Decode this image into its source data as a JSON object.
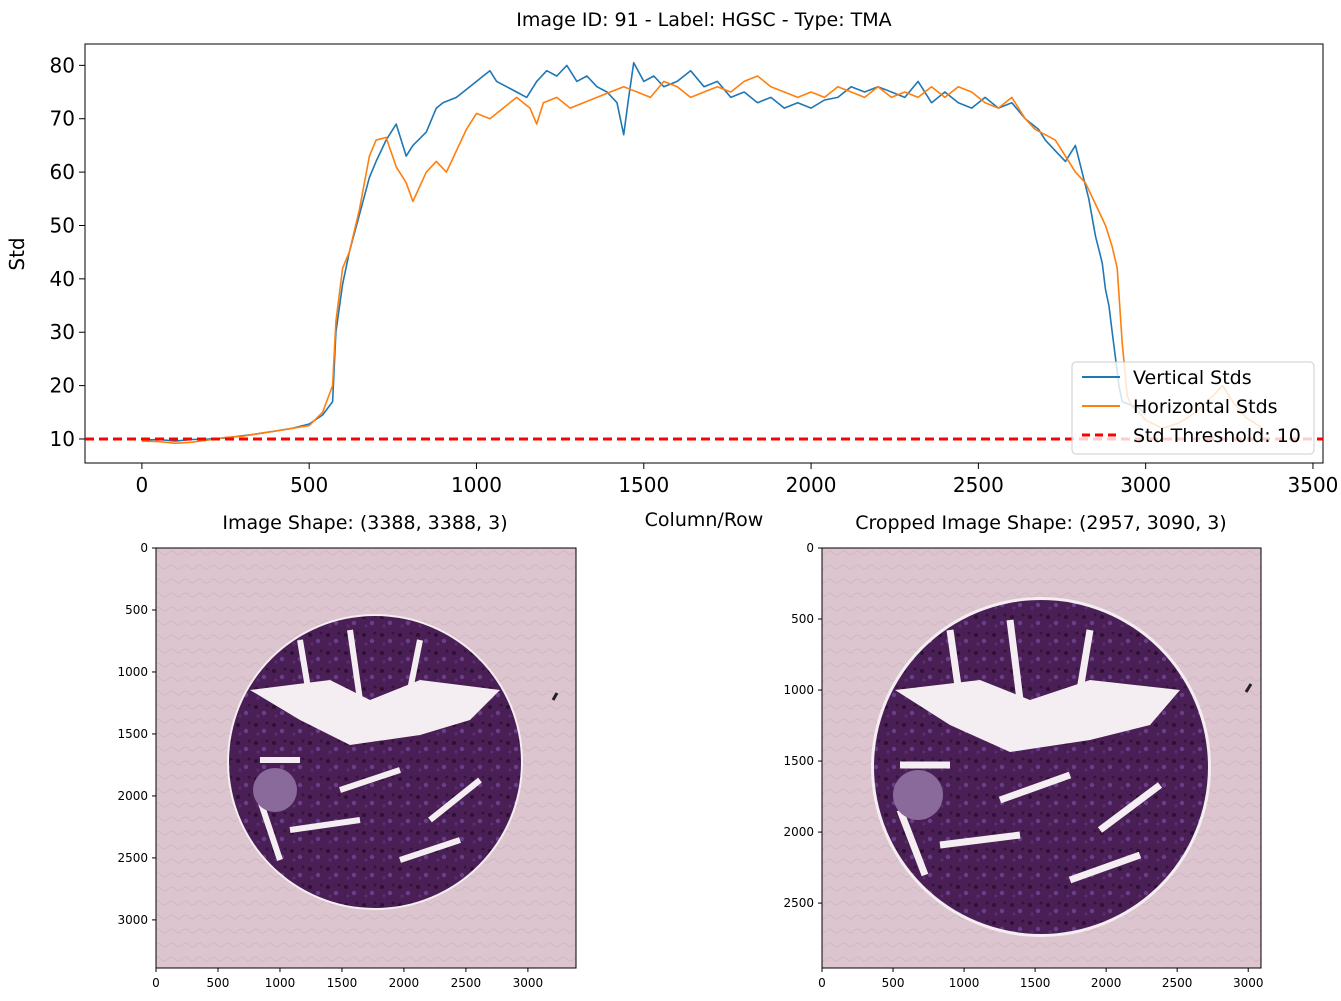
{
  "figure": {
    "suptitle": "Image ID: 91 - Label: HGSC - Type: TMA"
  },
  "chart_data": [
    {
      "type": "line",
      "title": "",
      "xlabel": "Column/Row",
      "ylabel": "Std",
      "xlim": [
        -170,
        3530
      ],
      "ylim": [
        5.5,
        84
      ],
      "xticks": [
        0,
        500,
        1000,
        1500,
        2000,
        2500,
        3000,
        3500
      ],
      "yticks": [
        10,
        20,
        30,
        40,
        50,
        60,
        70,
        80
      ],
      "grid": false,
      "legend_position": "lower right",
      "series": [
        {
          "name": "Vertical Stds",
          "color": "#1f77b4",
          "x": [
            0,
            50,
            100,
            150,
            200,
            250,
            300,
            350,
            400,
            450,
            500,
            540,
            570,
            580,
            600,
            620,
            650,
            680,
            700,
            730,
            760,
            790,
            810,
            850,
            880,
            900,
            940,
            980,
            1020,
            1040,
            1060,
            1090,
            1120,
            1150,
            1180,
            1210,
            1240,
            1270,
            1300,
            1330,
            1360,
            1390,
            1420,
            1440,
            1455,
            1470,
            1500,
            1530,
            1560,
            1600,
            1640,
            1680,
            1720,
            1760,
            1800,
            1840,
            1880,
            1920,
            1960,
            2000,
            2040,
            2080,
            2120,
            2160,
            2200,
            2240,
            2280,
            2320,
            2360,
            2400,
            2440,
            2480,
            2520,
            2560,
            2600,
            2640,
            2680,
            2700,
            2730,
            2760,
            2790,
            2810,
            2830,
            2850,
            2870,
            2880,
            2890,
            2900,
            2910,
            2920,
            2930,
            2950,
            2980,
            3000
          ],
          "values": [
            9.8,
            9.9,
            9.6,
            9.9,
            10.0,
            10.2,
            10.6,
            11.0,
            11.5,
            12.0,
            12.8,
            14.5,
            17.0,
            30.0,
            39.0,
            45.0,
            52.0,
            59.0,
            62.0,
            66.0,
            69.0,
            63.0,
            65.0,
            67.5,
            72.0,
            73.0,
            74.0,
            76.0,
            78.0,
            79.0,
            77.0,
            76.0,
            75.0,
            74.0,
            77.0,
            79.0,
            78.0,
            80.0,
            77.0,
            78.0,
            76.0,
            75.0,
            73.0,
            67.0,
            74.0,
            80.5,
            77.0,
            78.0,
            76.0,
            77.0,
            79.0,
            76.0,
            77.0,
            74.0,
            75.0,
            73.0,
            74.0,
            72.0,
            73.0,
            72.0,
            73.5,
            74.0,
            76.0,
            75.0,
            76.0,
            75.0,
            74.0,
            77.0,
            73.0,
            75.0,
            73.0,
            72.0,
            74.0,
            72.0,
            73.0,
            70.0,
            68.0,
            66.0,
            64.0,
            62.0,
            65.0,
            60.0,
            55.0,
            48.0,
            43.0,
            38.0,
            35.0,
            30.0,
            25.0,
            20.0,
            17.0,
            16.5,
            15.8,
            14.5
          ]
        },
        {
          "name": "Horizontal Stds",
          "color": "#ff7f0e",
          "x": [
            0,
            50,
            100,
            150,
            200,
            250,
            300,
            350,
            400,
            450,
            500,
            540,
            570,
            580,
            600,
            620,
            650,
            680,
            700,
            730,
            760,
            790,
            810,
            850,
            880,
            910,
            940,
            970,
            1000,
            1040,
            1080,
            1120,
            1160,
            1180,
            1200,
            1240,
            1280,
            1320,
            1360,
            1400,
            1440,
            1480,
            1520,
            1560,
            1600,
            1640,
            1680,
            1720,
            1760,
            1800,
            1840,
            1880,
            1920,
            1960,
            2000,
            2040,
            2080,
            2120,
            2160,
            2200,
            2240,
            2280,
            2320,
            2360,
            2400,
            2440,
            2480,
            2520,
            2560,
            2600,
            2640,
            2670,
            2700,
            2730,
            2760,
            2790,
            2820,
            2850,
            2880,
            2900,
            2915,
            2930,
            2945,
            2960,
            2980,
            3000,
            3050,
            3100,
            3150,
            3200,
            3230,
            3260,
            3300,
            3350
          ],
          "values": [
            9.6,
            9.5,
            9.2,
            9.4,
            9.8,
            10.3,
            10.5,
            11.0,
            11.5,
            12.0,
            12.5,
            15.0,
            20.0,
            32.0,
            42.0,
            45.0,
            53.0,
            63.0,
            66.0,
            66.5,
            61.0,
            58.0,
            54.5,
            60.0,
            62.0,
            60.0,
            64.0,
            68.0,
            71.0,
            70.0,
            72.0,
            74.0,
            72.0,
            69.0,
            73.0,
            74.0,
            72.0,
            73.0,
            74.0,
            75.0,
            76.0,
            75.0,
            74.0,
            77.0,
            76.0,
            74.0,
            75.0,
            76.0,
            75.0,
            77.0,
            78.0,
            76.0,
            75.0,
            74.0,
            75.0,
            74.0,
            76.0,
            75.0,
            74.0,
            76.0,
            74.0,
            75.0,
            74.0,
            76.0,
            74.0,
            76.0,
            75.0,
            73.0,
            72.0,
            74.0,
            70.0,
            68.0,
            67.0,
            66.0,
            63.0,
            60.0,
            58.0,
            54.0,
            50.0,
            46.0,
            42.0,
            28.0,
            18.0,
            16.0,
            15.0,
            13.5,
            12.0,
            13.0,
            15.0,
            18.0,
            20.0,
            17.0,
            14.0,
            12.0
          ]
        },
        {
          "name": "Std Threshold: 10",
          "color": "#ff0000",
          "style": "dashed",
          "x": [
            -170,
            3530
          ],
          "values": [
            10,
            10
          ]
        }
      ]
    },
    {
      "type": "image",
      "title": "Image Shape: (3388, 3388, 3)",
      "xlim": [
        0,
        3388
      ],
      "ylim": [
        3388,
        0
      ],
      "xticks": [
        0,
        500,
        1000,
        1500,
        2000,
        2500,
        3000
      ],
      "yticks": [
        0,
        500,
        1000,
        1500,
        2000,
        2500,
        3000
      ],
      "background_color": "#dcc5cf",
      "tissue_color": "#4a1f55",
      "core_center": [
        2285,
        1725
      ],
      "core_radius": 1175
    },
    {
      "type": "image",
      "title": "Cropped Image Shape: (2957, 3090, 3)",
      "xlim": [
        0,
        3090
      ],
      "ylim": [
        2957,
        0
      ],
      "xticks": [
        0,
        500,
        1000,
        1500,
        2000,
        2500,
        3000
      ],
      "yticks": [
        0,
        500,
        1000,
        1500,
        2000,
        2500
      ],
      "background_color": "#dcc5cf",
      "tissue_color": "#4a1f55",
      "core_center": [
        1543,
        1600
      ],
      "core_radius": 1175
    }
  ]
}
